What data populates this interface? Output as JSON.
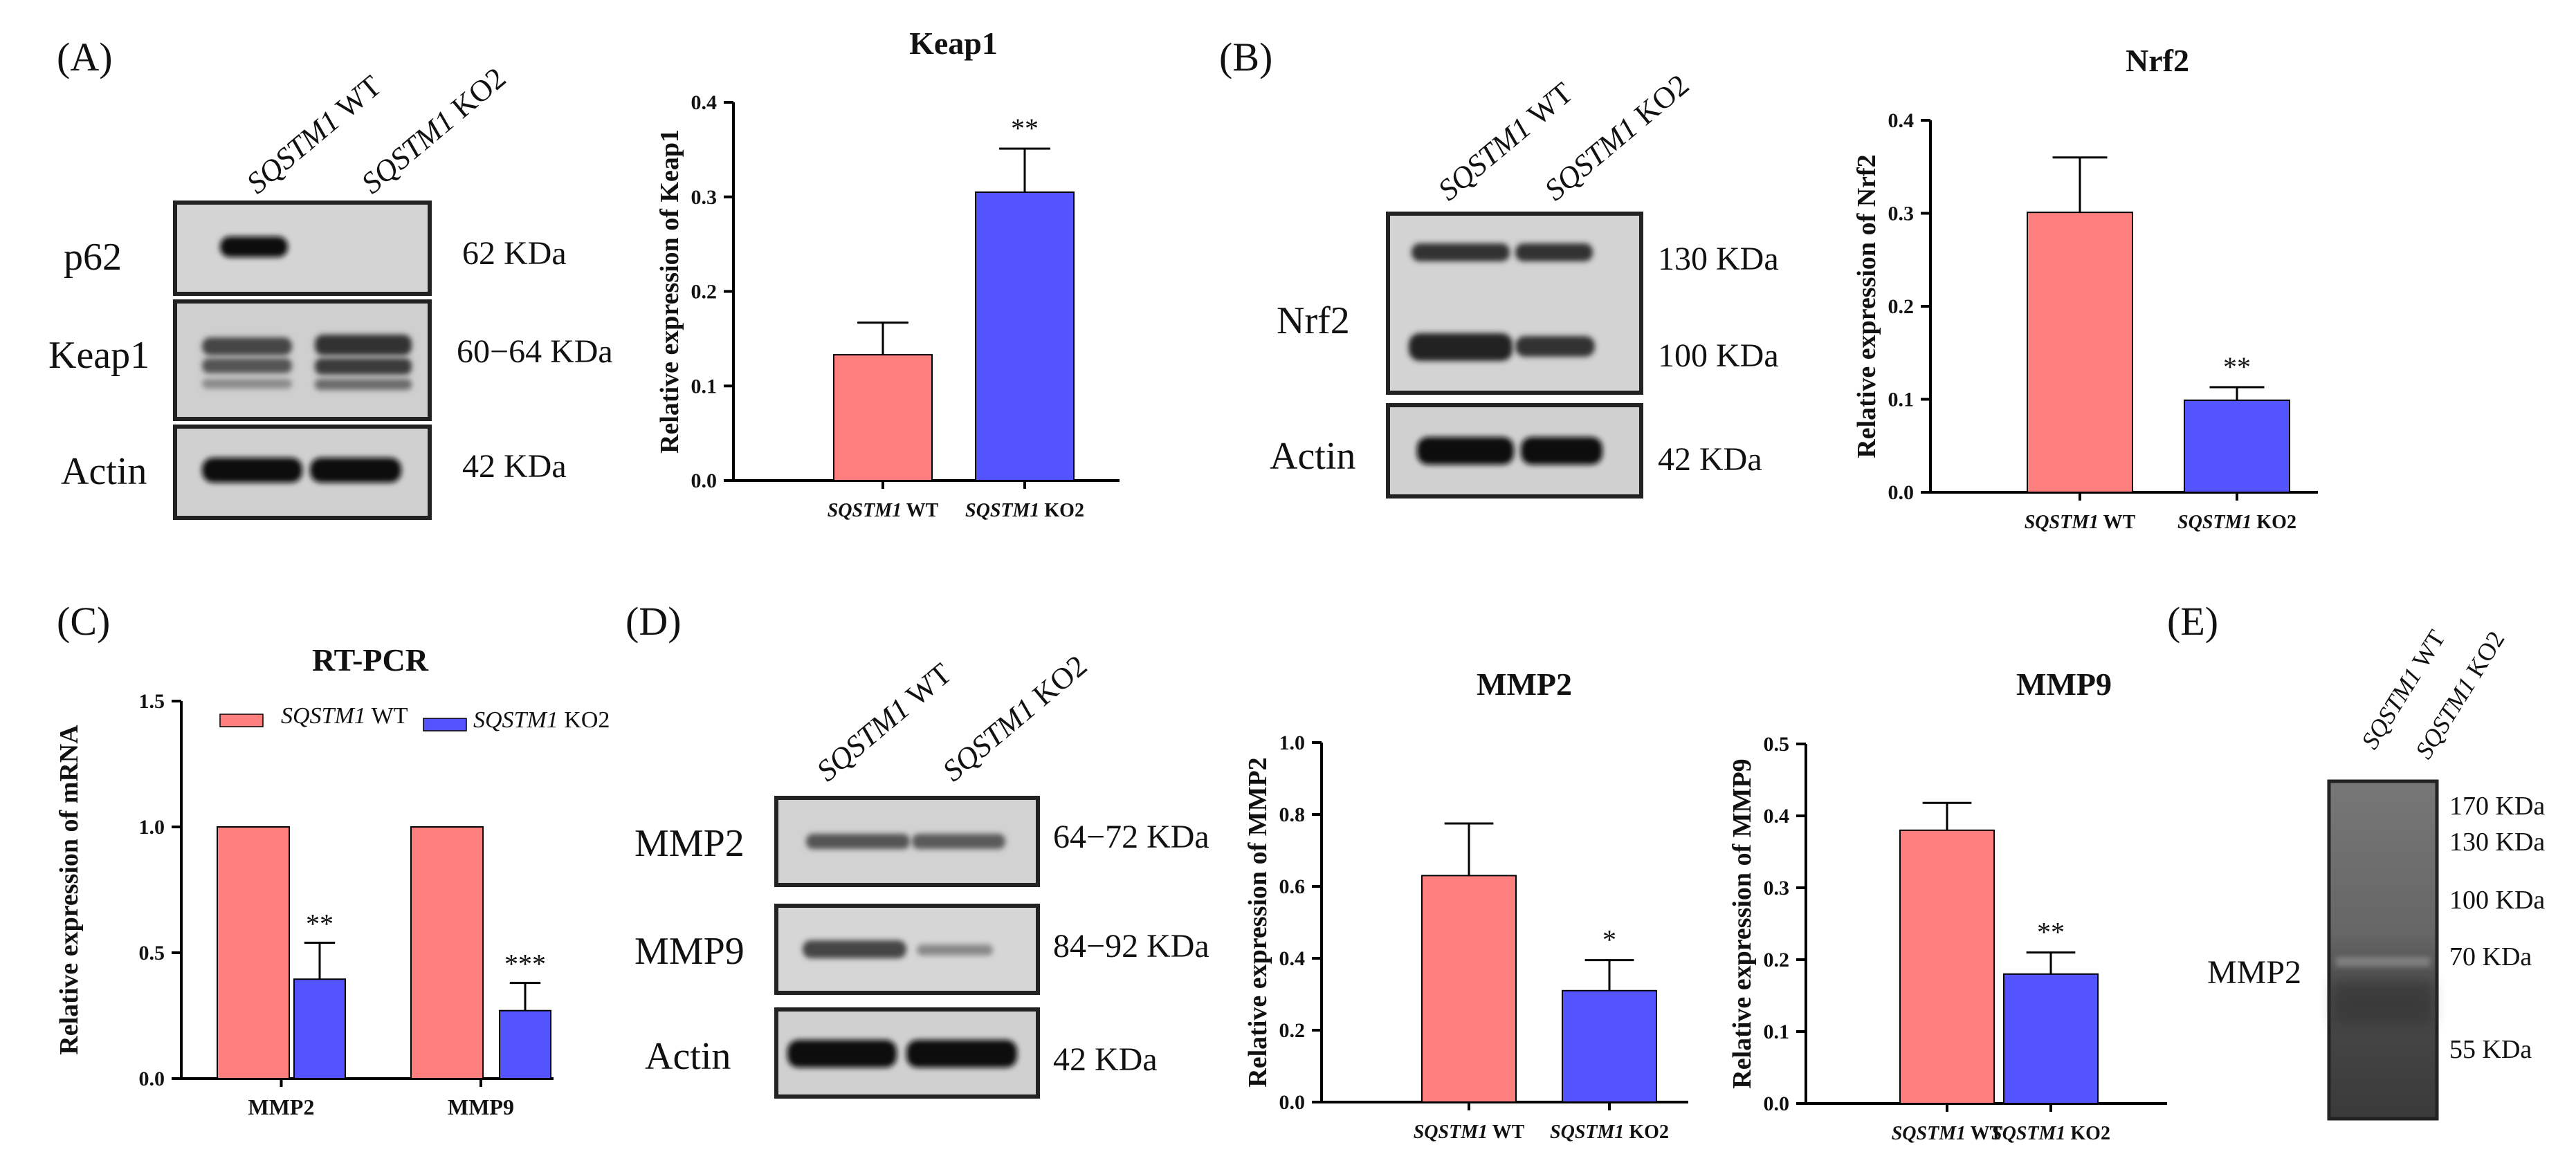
{
  "colors": {
    "wt": "#FF7F7F",
    "ko": "#5454FF",
    "axis": "#000000",
    "blot_bg": "#d2d2d2",
    "band": "#111111"
  },
  "panel_labels": {
    "A": "(A)",
    "B": "(B)",
    "C": "(C)",
    "D": "(D)",
    "E": "(E)"
  },
  "lanes": {
    "wt_gene": "SQSTM1",
    "wt_suffix": " WT",
    "ko_gene": "SQSTM1",
    "ko_suffix": " KO2"
  },
  "blots": {
    "A": {
      "rows": [
        {
          "label": "p62",
          "kda": "62 KDa"
        },
        {
          "label": "Keap1",
          "kda": "60−64 KDa"
        },
        {
          "label": "Actin",
          "kda": "42 KDa"
        }
      ]
    },
    "B": {
      "rows": [
        {
          "label": "Nrf2",
          "kda_top": "130 KDa",
          "kda_bottom": "100 KDa"
        },
        {
          "label": "Actin",
          "kda": "42 KDa"
        }
      ]
    },
    "D": {
      "rows": [
        {
          "label": "MMP2",
          "kda": "64−72 KDa"
        },
        {
          "label": "MMP9",
          "kda": "84−92 KDa"
        },
        {
          "label": "Actin",
          "kda": "42 KDa"
        }
      ]
    },
    "E": {
      "label": "MMP2",
      "markers": [
        "170 KDa",
        "130 KDa",
        "100 KDa",
        "70 KDa",
        "55 KDa"
      ]
    }
  },
  "chart_data": [
    {
      "id": "keap1",
      "type": "bar",
      "title": "Keap1",
      "ylabel": "Relative expression of Keap1",
      "categories": [
        {
          "gene": "SQSTM1",
          "suffix": " WT"
        },
        {
          "gene": "SQSTM1",
          "suffix": " KO2"
        }
      ],
      "values": [
        0.133,
        0.305
      ],
      "errors": [
        0.034,
        0.046
      ],
      "significance": [
        "",
        "**"
      ],
      "ylim": [
        0,
        0.4
      ],
      "ticks": [
        "0.0",
        "0.1",
        "0.2",
        "0.3",
        "0.4"
      ]
    },
    {
      "id": "nrf2",
      "type": "bar",
      "title": "Nrf2",
      "ylabel": "Relative expression of Nrf2",
      "categories": [
        {
          "gene": "SQSTM1",
          "suffix": " WT"
        },
        {
          "gene": "SQSTM1",
          "suffix": " KO2"
        }
      ],
      "values": [
        0.301,
        0.099
      ],
      "errors": [
        0.059,
        0.014
      ],
      "significance": [
        "",
        "**"
      ],
      "ylim": [
        0,
        0.4
      ],
      "ticks": [
        "0.0",
        "0.1",
        "0.2",
        "0.3",
        "0.4"
      ]
    },
    {
      "id": "rtpcr",
      "type": "bar",
      "title": "RT-PCR",
      "ylabel": "Relative expression of mRNA",
      "categories": [
        "MMP2",
        "MMP9"
      ],
      "series": [
        {
          "name": "WT",
          "gene": "SQSTM1",
          "suffix": " WT",
          "values": [
            1.0,
            1.0
          ],
          "errors": [
            0,
            0
          ],
          "significance": [
            "",
            ""
          ]
        },
        {
          "name": "KO2",
          "gene": "SQSTM1",
          "suffix": " KO2",
          "values": [
            0.395,
            0.27
          ],
          "errors": [
            0.145,
            0.11
          ],
          "significance": [
            "**",
            "***"
          ]
        }
      ],
      "ylim": [
        0,
        1.5
      ],
      "ticks": [
        "0.0",
        "0.5",
        "1.0",
        "1.5"
      ]
    },
    {
      "id": "mmp2",
      "type": "bar",
      "title": "MMP2",
      "ylabel": "Relative expression of MMP2",
      "categories": [
        {
          "gene": "SQSTM1",
          "suffix": " WT"
        },
        {
          "gene": "SQSTM1",
          "suffix": " KO2"
        }
      ],
      "values": [
        0.63,
        0.31
      ],
      "errors": [
        0.145,
        0.085
      ],
      "significance": [
        "",
        "*"
      ],
      "ylim": [
        0,
        1.0
      ],
      "ticks": [
        "0.0",
        "0.2",
        "0.4",
        "0.6",
        "0.8",
        "1.0"
      ]
    },
    {
      "id": "mmp9",
      "type": "bar",
      "title": "MMP9",
      "ylabel": "Relative expression of MMP9",
      "categories": [
        {
          "gene": "SQSTM1",
          "suffix": " WT"
        },
        {
          "gene": "SQSTM1",
          "suffix": " KO2"
        }
      ],
      "values": [
        0.38,
        0.18
      ],
      "errors": [
        0.038,
        0.03
      ],
      "significance": [
        "",
        "**"
      ],
      "ylim": [
        0,
        0.5
      ],
      "ticks": [
        "0.0",
        "0.1",
        "0.2",
        "0.3",
        "0.4",
        "0.5"
      ]
    }
  ]
}
